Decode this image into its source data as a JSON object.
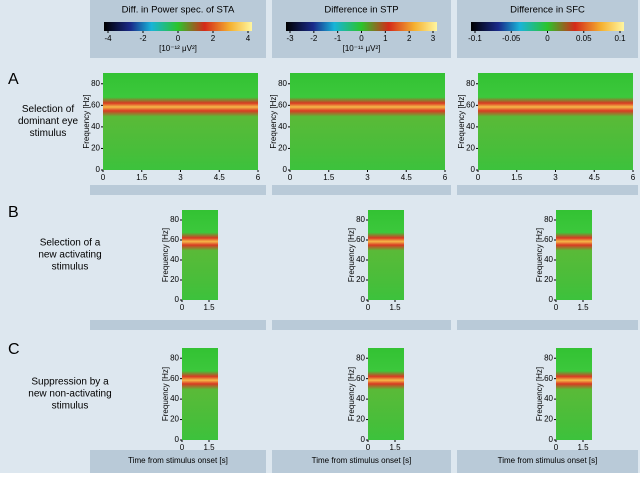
{
  "columns": [
    {
      "title": "Diff. in Power spec. of STA",
      "colorbar_ticks": [
        -4,
        -2,
        0,
        2,
        4
      ],
      "unit": "[10⁻¹² μV²]"
    },
    {
      "title": "Difference in STP",
      "colorbar_ticks": [
        -3,
        -2,
        -1,
        0,
        1,
        2,
        3
      ],
      "unit": "[10⁻¹¹ μV²]"
    },
    {
      "title": "Difference in SFC",
      "colorbar_ticks": [
        -0.1,
        -0.05,
        0,
        0.05,
        0.1
      ]
    }
  ],
  "rows": [
    {
      "letter": "A",
      "label": [
        "Selection of",
        "dominant eye",
        "stimulus"
      ],
      "xlim": [
        0,
        6
      ],
      "xticks": [
        0,
        1.5,
        3,
        4.5,
        6
      ]
    },
    {
      "letter": "B",
      "label": [
        "Selection of a",
        "new activating",
        "stimulus"
      ],
      "xlim": [
        0,
        2
      ],
      "xticks": [
        0,
        1.5
      ]
    },
    {
      "letter": "C",
      "label": [
        "Suppression by a",
        "new non-activating",
        "stimulus"
      ],
      "xlim": [
        0,
        2
      ],
      "xticks": [
        0,
        1.5
      ]
    }
  ],
  "y_axis": {
    "label": "Frequency [Hz]",
    "ylim": [
      0,
      90
    ],
    "yticks": [
      0,
      20,
      40,
      60,
      80
    ]
  },
  "x_axis_label": [
    "Time from stimulus onset [s]",
    "Time from stimulus onset [s]",
    "Time from stimulus onset [s]"
  ]
}
